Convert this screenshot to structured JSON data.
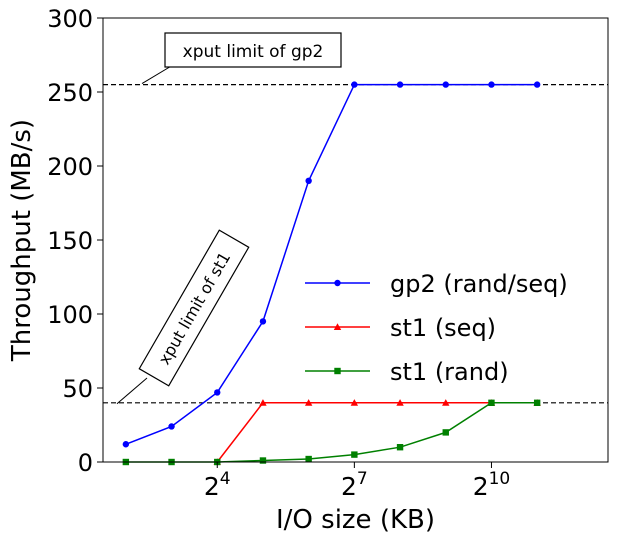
{
  "chart_data": {
    "type": "line",
    "xlabel": "I/O size (KB)",
    "ylabel": "Throughput (MB/s)",
    "xscale": "log2",
    "xlim": [
      1.5,
      12.55
    ],
    "ylim": [
      0,
      300
    ],
    "yticks": [
      0,
      50,
      100,
      150,
      200,
      250,
      300
    ],
    "xticks": [
      {
        "value": 4,
        "label_base": "2",
        "label_exp": "4"
      },
      {
        "value": 7,
        "label_base": "2",
        "label_exp": "7"
      },
      {
        "value": 10,
        "label_base": "2",
        "label_exp": "10"
      }
    ],
    "x_log2": [
      2,
      3,
      4,
      5,
      6,
      7,
      8,
      9,
      10,
      11
    ],
    "series": [
      {
        "name": "gp2 (rand/seq)",
        "color": "#0000ff",
        "marker": "circle",
        "values": [
          12,
          24,
          47,
          95,
          190,
          255,
          255,
          255,
          255,
          255
        ]
      },
      {
        "name": "st1 (seq)",
        "color": "#ff0000",
        "marker": "triangle",
        "x_log2": [
          4,
          5,
          6,
          7,
          8,
          9,
          10,
          11
        ],
        "values": [
          0,
          40,
          40,
          40,
          40,
          40,
          40,
          40
        ]
      },
      {
        "name": "st1 (rand)",
        "color": "#008000",
        "marker": "square",
        "values": [
          0,
          0,
          0,
          1,
          2,
          5,
          10,
          20,
          40,
          40
        ]
      }
    ],
    "reference_lines": [
      {
        "y": 255,
        "label": "xput limit of gp2"
      },
      {
        "y": 40,
        "label": "xput limit of st1"
      }
    ],
    "legend_position": "center-right"
  }
}
